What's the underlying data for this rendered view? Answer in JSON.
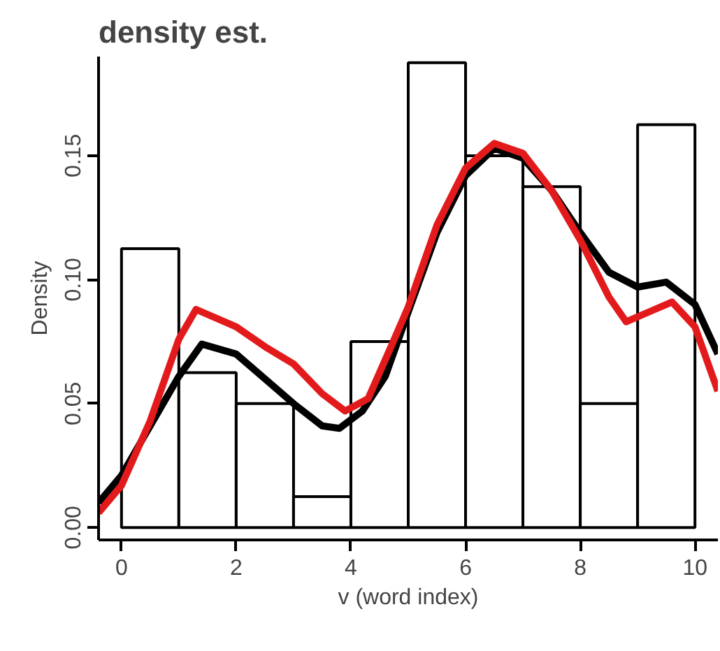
{
  "chart_data": {
    "type": "histogram",
    "title": "density est.",
    "xlabel": "v (word index)",
    "ylabel": "Density",
    "bins": [
      0,
      1,
      2,
      3,
      4,
      5,
      6,
      7,
      8,
      9,
      10
    ],
    "values": [
      0.1125,
      0.0625,
      0.05,
      0.0125,
      0.075,
      0.1875,
      0.15,
      0.1375,
      0.05,
      0.1625
    ],
    "color": "#ffffff",
    "series": [
      {
        "type": "line",
        "color": "#000000",
        "x": [
          -0.4,
          0,
          0.5,
          1,
          1.4,
          2,
          2.5,
          3,
          3.5,
          3.8,
          4.2,
          4.6,
          5,
          5.5,
          6,
          6.5,
          7,
          7.5,
          8,
          8.5,
          9,
          9.5,
          10,
          10.4
        ],
        "values": [
          0.01,
          0.021,
          0.041,
          0.061,
          0.074,
          0.07,
          0.06,
          0.05,
          0.041,
          0.04,
          0.047,
          0.061,
          0.087,
          0.119,
          0.142,
          0.153,
          0.149,
          0.136,
          0.119,
          0.103,
          0.097,
          0.099,
          0.09,
          0.07
        ]
      },
      {
        "type": "line",
        "color": "#e31a1c",
        "x": [
          -0.4,
          0,
          0.5,
          1,
          1.3,
          2,
          2.5,
          3,
          3.5,
          3.9,
          4.3,
          4.7,
          5,
          5.5,
          6,
          6.5,
          7,
          7.5,
          8,
          8.5,
          8.8,
          9.2,
          9.6,
          10,
          10.4
        ],
        "values": [
          0.006,
          0.017,
          0.043,
          0.076,
          0.088,
          0.081,
          0.073,
          0.066,
          0.054,
          0.047,
          0.052,
          0.073,
          0.089,
          0.122,
          0.145,
          0.155,
          0.151,
          0.136,
          0.116,
          0.093,
          0.083,
          0.087,
          0.091,
          0.081,
          0.055
        ]
      }
    ],
    "xlim": [
      -0.4,
      10.4
    ],
    "ylim": [
      -0.005,
      0.19
    ],
    "xticks": [
      0,
      2,
      4,
      6,
      8,
      10
    ],
    "yticks": [
      {
        "value": 0,
        "label": "0.00"
      },
      {
        "value": 0.05,
        "label": "0.05"
      },
      {
        "value": 0.1,
        "label": "0.10"
      },
      {
        "value": 0.15,
        "label": "0.15"
      }
    ],
    "grid": false,
    "line_style": "solid"
  }
}
